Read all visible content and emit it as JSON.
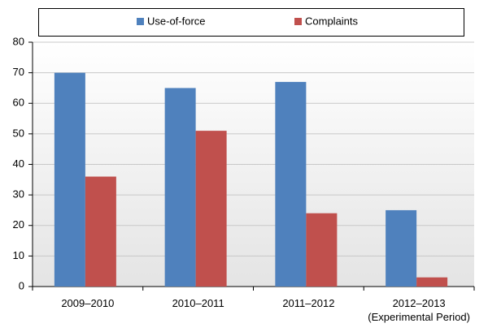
{
  "chart_data": {
    "type": "bar",
    "categories": [
      "2009–2010",
      "2010–2011",
      "2011–2012",
      "2012–2013\n(Experimental Period)"
    ],
    "series": [
      {
        "name": "Use-of-force",
        "color": "#4f81bd",
        "values": [
          70,
          65,
          67,
          25
        ]
      },
      {
        "name": "Complaints",
        "color": "#c0504d",
        "values": [
          36,
          51,
          24,
          3
        ]
      }
    ],
    "ylim": [
      0,
      80
    ],
    "yticks": [
      0,
      10,
      20,
      30,
      40,
      50,
      60,
      70,
      80
    ],
    "grid": true,
    "legend": "top"
  }
}
